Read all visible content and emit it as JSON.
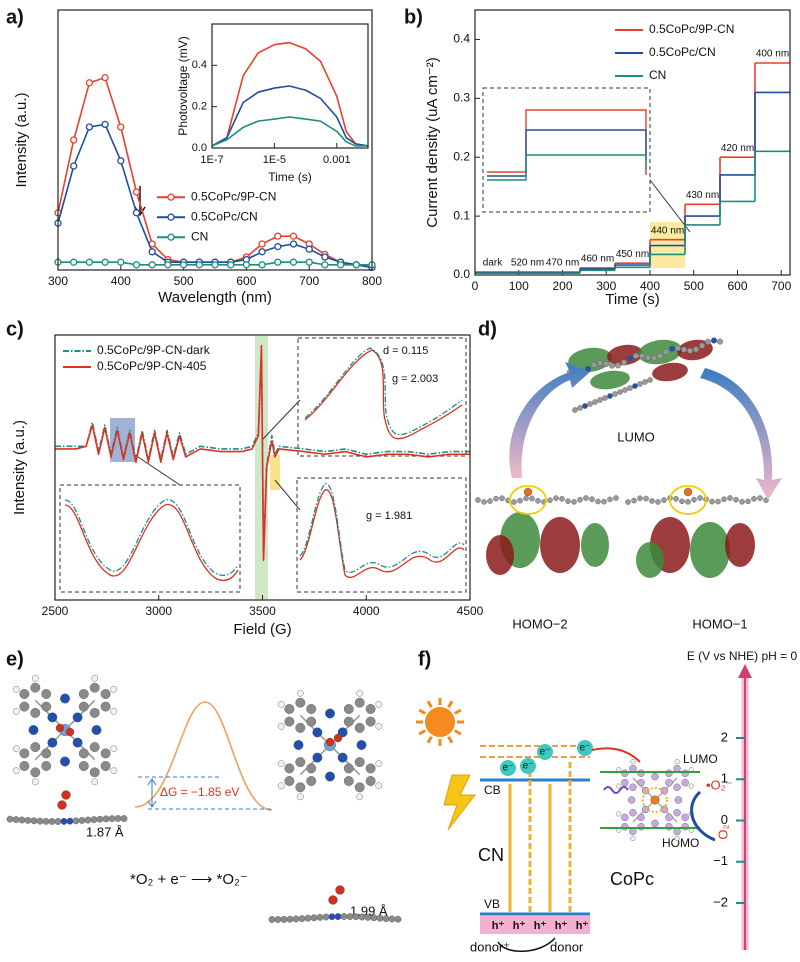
{
  "chart_data": [
    {
      "type": "line",
      "label": "a)",
      "xlabel": "Wavelength (nm)",
      "ylabel": "Intensity (a.u.)",
      "x": [
        300,
        325,
        350,
        375,
        400,
        425,
        450,
        475,
        500,
        525,
        550,
        575,
        600,
        625,
        650,
        675,
        700,
        725,
        750,
        775,
        800
      ],
      "series": [
        {
          "name": "0.5CoPc/9P-CN",
          "color": "#e8402a",
          "values": [
            0.22,
            0.5,
            0.72,
            0.74,
            0.55,
            0.3,
            0.1,
            0.04,
            0.03,
            0.03,
            0.03,
            0.03,
            0.05,
            0.1,
            0.13,
            0.13,
            0.1,
            0.06,
            0.03,
            0.02,
            0.01
          ]
        },
        {
          "name": "0.5CoPc/CN",
          "color": "#1f4e9c",
          "values": [
            0.18,
            0.4,
            0.55,
            0.56,
            0.42,
            0.22,
            0.07,
            0.03,
            0.03,
            0.03,
            0.03,
            0.03,
            0.04,
            0.07,
            0.09,
            0.1,
            0.08,
            0.05,
            0.03,
            0.02,
            0.01
          ]
        },
        {
          "name": "CN",
          "color": "#1a8f7f",
          "values": [
            0.03,
            0.03,
            0.03,
            0.03,
            0.03,
            0.02,
            0.02,
            0.02,
            0.02,
            0.02,
            0.02,
            0.02,
            0.02,
            0.02,
            0.03,
            0.03,
            0.03,
            0.02,
            0.02,
            0.02,
            0.02
          ]
        }
      ],
      "marker": "o",
      "xlim": [
        300,
        800
      ],
      "xticks": [
        300,
        400,
        500,
        600,
        700,
        800
      ],
      "ylim": [
        0,
        1
      ],
      "legend": "center right"
    },
    {
      "type": "line",
      "xlabel": "Time (s)",
      "ylabel": "Photovoltage (mV)",
      "xscale": "log",
      "x": [
        1e-07,
        3e-07,
        1e-06,
        3e-06,
        1e-05,
        3e-05,
        0.0001,
        0.0003,
        0.001,
        0.002,
        0.004,
        0.01
      ],
      "series": [
        {
          "color": "#e8402a",
          "values": [
            0.01,
            0.05,
            0.35,
            0.46,
            0.5,
            0.51,
            0.48,
            0.42,
            0.25,
            0.08,
            0.02,
            0.01
          ]
        },
        {
          "color": "#1f4e9c",
          "values": [
            0.01,
            0.05,
            0.22,
            0.27,
            0.29,
            0.3,
            0.28,
            0.24,
            0.15,
            0.05,
            0.02,
            0.01
          ]
        },
        {
          "color": "#1a8f7f",
          "values": [
            0.01,
            0.04,
            0.1,
            0.13,
            0.14,
            0.15,
            0.14,
            0.13,
            0.08,
            0.03,
            0.01,
            0.01
          ]
        }
      ],
      "xlim": [
        1e-07,
        0.01
      ],
      "xticks": [
        {
          "value": 1e-07,
          "label": "1E-7"
        },
        {
          "value": 1e-05,
          "label": "1E-5"
        },
        0.001
      ],
      "ylim": [
        0,
        0.6
      ],
      "yticks": [
        {
          "value": 0,
          "label": "0.0"
        },
        0.2,
        0.4
      ]
    },
    {
      "type": "step",
      "label": "b)",
      "xlabel": "Time (s)",
      "ylabel": "Current density (uA cm⁻²)",
      "x": [
        0,
        80,
        160,
        240,
        320,
        400,
        480,
        560,
        640
      ],
      "segment_labels": [
        "dark",
        "520 nm",
        "470 nm",
        "460 nm",
        "450 nm",
        "440 nm",
        "430 nm",
        "420 nm",
        "400 nm"
      ],
      "series": [
        {
          "name": "0.5CoPc/9P-CN",
          "color": "#e8402a",
          "values": [
            0.005,
            0.005,
            0.005,
            0.012,
            0.02,
            0.06,
            0.12,
            0.2,
            0.36
          ]
        },
        {
          "name": "0.5CoPc/CN",
          "color": "#1f4e9c",
          "values": [
            0.004,
            0.004,
            0.004,
            0.01,
            0.017,
            0.05,
            0.1,
            0.17,
            0.31
          ]
        },
        {
          "name": "CN",
          "color": "#1a8f7f",
          "values": [
            0.003,
            0.003,
            0.003,
            0.008,
            0.013,
            0.035,
            0.085,
            0.125,
            0.21
          ]
        }
      ],
      "xlim": [
        0,
        720
      ],
      "xticks": [
        0,
        100,
        200,
        300,
        400,
        500,
        600,
        700
      ],
      "ylim": [
        0,
        0.45
      ],
      "yticks": [
        {
          "value": 0,
          "label": "0.0"
        },
        0.1,
        0.2,
        0.3,
        0.4
      ],
      "legend": "upper right"
    },
    {
      "type": "line",
      "label": "c)",
      "xlabel": "Field (G)",
      "ylabel": "Intensity (a.u.)",
      "x": [
        2500,
        2600,
        2650,
        2680,
        2710,
        2740,
        2770,
        2800,
        2830,
        2860,
        2890,
        2920,
        2950,
        2980,
        3010,
        3040,
        3070,
        3100,
        3130,
        3200,
        3300,
        3400,
        3450,
        3480,
        3495,
        3505,
        3520,
        3545,
        3560,
        3580,
        3700,
        3800,
        3900,
        4000,
        4100,
        4200,
        4300,
        4400,
        4500
      ],
      "series": [
        {
          "name": "0.5CoPc/9P-CN-dark",
          "color": "#1a8f8a",
          "linestyle": "dashdot",
          "values": [
            0.58,
            0.58,
            0.58,
            0.67,
            0.56,
            0.66,
            0.55,
            0.65,
            0.54,
            0.64,
            0.53,
            0.64,
            0.53,
            0.64,
            0.53,
            0.64,
            0.54,
            0.63,
            0.55,
            0.58,
            0.57,
            0.57,
            0.58,
            0.63,
            0.94,
            0.17,
            0.51,
            0.62,
            0.55,
            0.58,
            0.57,
            0.56,
            0.57,
            0.55,
            0.56,
            0.56,
            0.55,
            0.56,
            0.56
          ]
        },
        {
          "name": "0.5CoPc/9P-CN-405",
          "color": "#e03020",
          "values": [
            0.57,
            0.57,
            0.58,
            0.66,
            0.55,
            0.65,
            0.54,
            0.64,
            0.53,
            0.63,
            0.52,
            0.63,
            0.52,
            0.63,
            0.52,
            0.63,
            0.53,
            0.62,
            0.54,
            0.57,
            0.56,
            0.56,
            0.57,
            0.62,
            0.96,
            0.15,
            0.5,
            0.6,
            0.54,
            0.57,
            0.56,
            0.55,
            0.56,
            0.54,
            0.55,
            0.55,
            0.54,
            0.55,
            0.55
          ]
        }
      ],
      "annotations": [
        "d = 0.115",
        "g = 2.003",
        "g = 1.981"
      ],
      "xlim": [
        2500,
        4500
      ],
      "xticks": [
        2500,
        3000,
        3500,
        4000,
        4500
      ],
      "ylim": [
        0,
        1
      ],
      "legend": "upper left"
    }
  ],
  "diagrams": {
    "d": {
      "label": "d)",
      "lumo": "LUMO",
      "homo2": "HOMO−2",
      "homo1": "HOMO−1"
    },
    "e": {
      "label": "e)",
      "bond1": "1.87 Å",
      "dg": "ΔG = −1.85 eV",
      "equation": "*O₂ + e⁻ ⟶ *O₂⁻",
      "bond2": "1.99 Å"
    },
    "f": {
      "label": "f)",
      "axis_title": "E (V vs NHE) pH = 0",
      "axis_ticks": [
        2,
        1,
        0,
        {
          "value": -1,
          "label": "−1"
        },
        {
          "value": -2,
          "label": "−2"
        }
      ],
      "cb": "CB",
      "vb": "VB",
      "cn": "CN",
      "copc": "CoPc",
      "lumo": "LUMO",
      "homo": "HOMO",
      "superoxide": "•O₂⁻",
      "o2": "O₂",
      "donor_plus": "donor⁺",
      "donor": "donor",
      "electron": "e⁻",
      "hole": "h⁺"
    }
  }
}
